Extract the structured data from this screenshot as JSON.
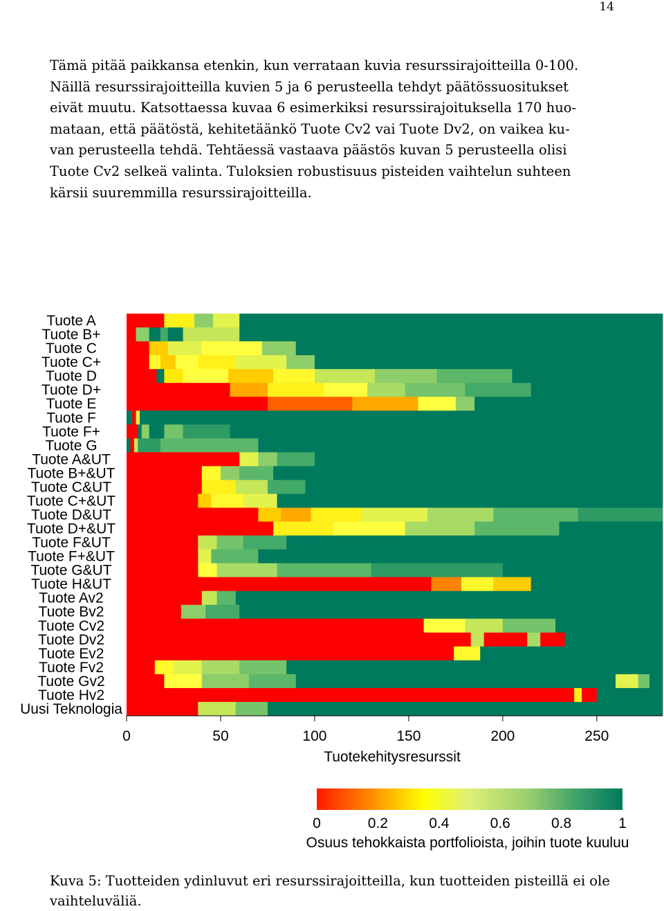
{
  "page": {
    "number": "14",
    "paragraph_lines": [
      "Tämä pitää paikkansa etenkin, kun verrataan kuvia resurssirajoitteilla 0-100.",
      "Näillä resurssirajoitteilla kuvien 5 ja 6 perusteella tehdyt päätössuositukset",
      "eivät muutu. Katsottaessa kuvaa 6 esimerkiksi resurssirajoituksella 170 huo-",
      "mataan, että päätöstä, kehitetäänkö Tuote Cv2 vai Tuote Dv2, on vaikea ku-",
      "van perusteella tehdä. Tehtäessä vastaava päästös kuvan 5 perusteella olisi",
      "Tuote Cv2 selkeä valinta. Tuloksien robustisuus pisteiden vaihtelun suhteen",
      "kärsii suuremmilla resurssirajoitteilla."
    ],
    "caption_lines": [
      "Kuva 5: Tuotteiden ydinluvut eri resurssirajoitteilla, kun tuotteiden pisteillä ei ole",
      "vaihteluväliä."
    ]
  },
  "chart_data": {
    "type": "heatmap",
    "title": "",
    "xlabel": "Tuotekehitysresurssit",
    "ylabel": "",
    "xlim": [
      0,
      285
    ],
    "xticks": [
      "0",
      "50",
      "100",
      "150",
      "200",
      "250"
    ],
    "rows": [
      {
        "name": "Tuote A",
        "segments": [
          [
            0,
            20,
            0.0
          ],
          [
            20,
            36,
            0.4
          ],
          [
            36,
            46,
            0.7
          ],
          [
            46,
            60,
            0.55
          ],
          [
            60,
            285,
            1.0
          ]
        ]
      },
      {
        "name": "Tuote B+",
        "segments": [
          [
            0,
            5,
            0.0
          ],
          [
            5,
            12,
            0.7
          ],
          [
            12,
            18,
            1.0
          ],
          [
            18,
            22,
            0.85
          ],
          [
            22,
            30,
            1.0
          ],
          [
            30,
            60,
            0.6
          ],
          [
            60,
            285,
            1.0
          ]
        ]
      },
      {
        "name": "Tuote C",
        "segments": [
          [
            0,
            12,
            0.0
          ],
          [
            12,
            22,
            0.3
          ],
          [
            22,
            40,
            0.55
          ],
          [
            40,
            72,
            0.5
          ],
          [
            72,
            90,
            0.7
          ],
          [
            90,
            285,
            1.0
          ]
        ]
      },
      {
        "name": "Tuote C+",
        "segments": [
          [
            0,
            12,
            0.0
          ],
          [
            12,
            18,
            0.45
          ],
          [
            18,
            26,
            0.3
          ],
          [
            26,
            38,
            0.5
          ],
          [
            38,
            58,
            0.4
          ],
          [
            58,
            85,
            0.55
          ],
          [
            85,
            100,
            0.7
          ],
          [
            100,
            285,
            1.0
          ]
        ]
      },
      {
        "name": "Tuote D",
        "segments": [
          [
            0,
            16,
            0.0
          ],
          [
            16,
            20,
            1.0
          ],
          [
            20,
            30,
            0.35
          ],
          [
            30,
            54,
            0.5
          ],
          [
            54,
            78,
            0.3
          ],
          [
            78,
            100,
            0.45
          ],
          [
            100,
            132,
            0.6
          ],
          [
            132,
            165,
            0.7
          ],
          [
            165,
            205,
            0.8
          ],
          [
            205,
            285,
            1.0
          ]
        ]
      },
      {
        "name": "Tuote  D+",
        "segments": [
          [
            0,
            55,
            0.0
          ],
          [
            55,
            75,
            0.25
          ],
          [
            75,
            105,
            0.4
          ],
          [
            105,
            128,
            0.5
          ],
          [
            128,
            148,
            0.65
          ],
          [
            148,
            180,
            0.75
          ],
          [
            180,
            215,
            0.85
          ],
          [
            215,
            285,
            1.0
          ]
        ]
      },
      {
        "name": "Tuote E",
        "segments": [
          [
            0,
            75,
            0.0
          ],
          [
            75,
            120,
            0.15
          ],
          [
            120,
            155,
            0.25
          ],
          [
            155,
            175,
            0.5
          ],
          [
            175,
            185,
            0.7
          ],
          [
            185,
            285,
            1.0
          ]
        ]
      },
      {
        "name": "Tuote F",
        "segments": [
          [
            0,
            3,
            1.0
          ],
          [
            3,
            5,
            0.0
          ],
          [
            5,
            7,
            0.55
          ],
          [
            7,
            285,
            1.0
          ]
        ]
      },
      {
        "name": "Tuote F+",
        "segments": [
          [
            0,
            6,
            0.0
          ],
          [
            6,
            8,
            1.0
          ],
          [
            8,
            12,
            0.7
          ],
          [
            12,
            20,
            1.0
          ],
          [
            20,
            30,
            0.75
          ],
          [
            30,
            55,
            0.9
          ],
          [
            55,
            285,
            1.0
          ]
        ]
      },
      {
        "name": "Tuote G",
        "segments": [
          [
            0,
            2,
            1.0
          ],
          [
            2,
            4,
            0.0
          ],
          [
            4,
            6,
            0.6
          ],
          [
            6,
            18,
            0.9
          ],
          [
            18,
            70,
            0.8
          ],
          [
            70,
            285,
            1.0
          ]
        ]
      },
      {
        "name": "Tuote A&UT",
        "segments": [
          [
            0,
            60,
            0.0
          ],
          [
            60,
            70,
            0.55
          ],
          [
            70,
            80,
            0.7
          ],
          [
            80,
            100,
            0.85
          ],
          [
            100,
            285,
            1.0
          ]
        ]
      },
      {
        "name": "Tuote B+&UT",
        "segments": [
          [
            0,
            40,
            0.0
          ],
          [
            40,
            50,
            0.45
          ],
          [
            50,
            60,
            0.7
          ],
          [
            60,
            78,
            0.8
          ],
          [
            78,
            285,
            1.0
          ]
        ]
      },
      {
        "name": "Tuote C&UT",
        "segments": [
          [
            0,
            40,
            0.0
          ],
          [
            40,
            58,
            0.4
          ],
          [
            58,
            75,
            0.6
          ],
          [
            75,
            95,
            0.85
          ],
          [
            95,
            285,
            1.0
          ]
        ]
      },
      {
        "name": "Tuote C+&UT",
        "segments": [
          [
            0,
            38,
            0.0
          ],
          [
            38,
            45,
            0.3
          ],
          [
            45,
            62,
            0.45
          ],
          [
            62,
            80,
            0.55
          ],
          [
            80,
            285,
            1.0
          ]
        ]
      },
      {
        "name": "Tuote D&UT",
        "segments": [
          [
            0,
            70,
            0.0
          ],
          [
            70,
            82,
            0.3
          ],
          [
            82,
            98,
            0.25
          ],
          [
            98,
            125,
            0.4
          ],
          [
            125,
            160,
            0.55
          ],
          [
            160,
            195,
            0.65
          ],
          [
            195,
            240,
            0.8
          ],
          [
            240,
            285,
            0.9
          ]
        ]
      },
      {
        "name": "Tuote D+&UT",
        "segments": [
          [
            0,
            78,
            0.0
          ],
          [
            78,
            110,
            0.4
          ],
          [
            110,
            148,
            0.5
          ],
          [
            148,
            185,
            0.65
          ],
          [
            185,
            230,
            0.8
          ],
          [
            230,
            285,
            1.0
          ]
        ]
      },
      {
        "name": "Tuote F&UT",
        "segments": [
          [
            0,
            38,
            0.0
          ],
          [
            38,
            48,
            0.6
          ],
          [
            48,
            62,
            0.75
          ],
          [
            62,
            85,
            0.85
          ],
          [
            85,
            285,
            1.0
          ]
        ]
      },
      {
        "name": "Tuote F+&UT",
        "segments": [
          [
            0,
            38,
            0.0
          ],
          [
            38,
            45,
            0.55
          ],
          [
            45,
            70,
            0.8
          ],
          [
            70,
            285,
            1.0
          ]
        ]
      },
      {
        "name": "Tuote G&UT",
        "segments": [
          [
            0,
            38,
            0.0
          ],
          [
            38,
            48,
            0.5
          ],
          [
            48,
            80,
            0.65
          ],
          [
            80,
            130,
            0.8
          ],
          [
            130,
            200,
            0.9
          ],
          [
            200,
            285,
            1.0
          ]
        ]
      },
      {
        "name": "Tuote H&UT",
        "segments": [
          [
            0,
            162,
            0.0
          ],
          [
            162,
            178,
            0.2
          ],
          [
            178,
            195,
            0.45
          ],
          [
            195,
            215,
            0.3
          ],
          [
            215,
            285,
            1.0
          ]
        ]
      },
      {
        "name": "Tuote Av2",
        "segments": [
          [
            0,
            40,
            0.0
          ],
          [
            40,
            48,
            0.6
          ],
          [
            48,
            58,
            0.8
          ],
          [
            58,
            285,
            1.0
          ]
        ]
      },
      {
        "name": "Tuote Bv2",
        "segments": [
          [
            0,
            29,
            0.0
          ],
          [
            29,
            42,
            0.7
          ],
          [
            42,
            60,
            0.85
          ],
          [
            60,
            285,
            1.0
          ]
        ]
      },
      {
        "name": "Tuote Cv2",
        "segments": [
          [
            0,
            158,
            0.0
          ],
          [
            158,
            180,
            0.5
          ],
          [
            180,
            200,
            0.6
          ],
          [
            200,
            228,
            0.75
          ],
          [
            228,
            285,
            1.0
          ]
        ]
      },
      {
        "name": "Tuote Dv2",
        "segments": [
          [
            0,
            183,
            0.0
          ],
          [
            183,
            190,
            0.6
          ],
          [
            190,
            213,
            0.0
          ],
          [
            213,
            220,
            0.65
          ],
          [
            220,
            233,
            0.0
          ],
          [
            233,
            285,
            1.0
          ]
        ]
      },
      {
        "name": "Tuote Ev2",
        "segments": [
          [
            0,
            174,
            0.0
          ],
          [
            174,
            188,
            0.45
          ],
          [
            188,
            285,
            1.0
          ]
        ]
      },
      {
        "name": "Tuote Fv2",
        "segments": [
          [
            0,
            15,
            0.0
          ],
          [
            15,
            25,
            0.45
          ],
          [
            25,
            40,
            0.55
          ],
          [
            40,
            60,
            0.65
          ],
          [
            60,
            85,
            0.75
          ],
          [
            85,
            285,
            1.0
          ]
        ]
      },
      {
        "name": "Tuote Gv2",
        "segments": [
          [
            0,
            20,
            0.0
          ],
          [
            20,
            40,
            0.5
          ],
          [
            40,
            65,
            0.7
          ],
          [
            65,
            90,
            0.8
          ],
          [
            90,
            260,
            1.0
          ],
          [
            260,
            272,
            0.55
          ],
          [
            272,
            278,
            0.75
          ],
          [
            278,
            285,
            1.0
          ]
        ]
      },
      {
        "name": "Tuote Hv2",
        "segments": [
          [
            0,
            238,
            0.0
          ],
          [
            238,
            242,
            0.4
          ],
          [
            242,
            250,
            0.0
          ],
          [
            250,
            285,
            1.0
          ]
        ]
      },
      {
        "name": "Uusi Teknologia",
        "segments": [
          [
            0,
            38,
            0.0
          ],
          [
            38,
            58,
            0.6
          ],
          [
            58,
            75,
            0.75
          ],
          [
            75,
            285,
            1.0
          ]
        ]
      }
    ],
    "colorbar": {
      "label": "Osuus tehokkaista portfolioista, joihin tuote kuuluu",
      "ticks": [
        "0",
        "0.2",
        "0.4",
        "0.6",
        "0.8",
        "1"
      ],
      "range": [
        0,
        1
      ]
    },
    "colorscale": [
      "#ff0000",
      "#ff6a00",
      "#ffe600",
      "#ffff40",
      "#9ed66a",
      "#4caf6a",
      "#007a5c"
    ]
  }
}
